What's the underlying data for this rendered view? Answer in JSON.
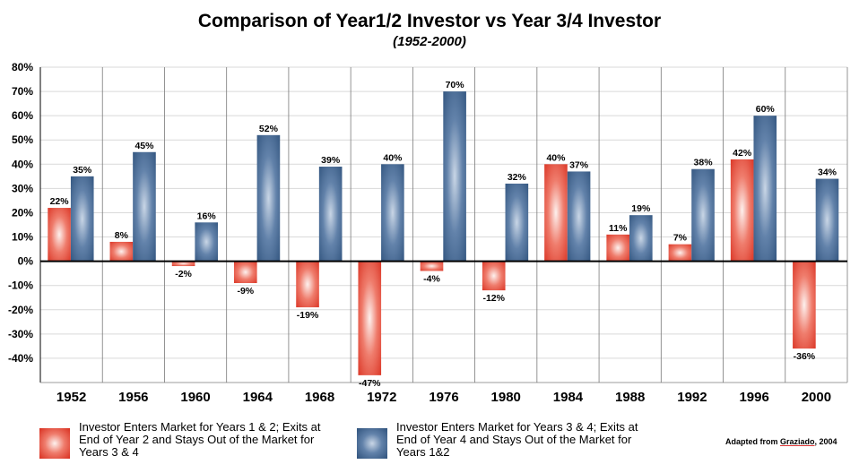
{
  "chart_data": {
    "type": "bar",
    "title": "Comparison of Year1/2 Investor vs Year 3/4 Investor",
    "subtitle": "(1952-2000)",
    "categories": [
      "1952",
      "1956",
      "1960",
      "1964",
      "1968",
      "1972",
      "1976",
      "1980",
      "1984",
      "1988",
      "1992",
      "1996",
      "2000"
    ],
    "series": [
      {
        "name": "Investor Enters Market for Years 1 & 2; Exits at End of Year 2 and Stays Out of the Market for Years 3 & 4",
        "values": [
          22,
          8,
          -2,
          -9,
          -19,
          -47,
          -4,
          -12,
          40,
          11,
          7,
          42,
          -36
        ],
        "labels": [
          "22%",
          "8%",
          "-2%",
          "-9%",
          "-19%",
          "-47%",
          "-4%",
          "-12%",
          "40%",
          "11%",
          "7%",
          "42%",
          "-36%"
        ],
        "color": "#e03a2a"
      },
      {
        "name": "Investor Enters Market for Years 3 & 4; Exits at End of Year 4 and Stays Out of the Market for Years 1&2",
        "values": [
          35,
          45,
          16,
          52,
          39,
          40,
          70,
          32,
          37,
          19,
          38,
          60,
          34
        ],
        "labels": [
          "35%",
          "45%",
          "16%",
          "52%",
          "39%",
          "40%",
          "70%",
          "32%",
          "37%",
          "19%",
          "38%",
          "60%",
          "34%"
        ],
        "color": "#3a5f8c"
      }
    ],
    "y_ticks": [
      "80%",
      "70%",
      "60%",
      "50%",
      "40%",
      "30%",
      "20%",
      "10%",
      "0%",
      "-10%",
      "-20%",
      "-30%",
      "-40%"
    ],
    "ylim": [
      -50,
      80
    ],
    "grid": true,
    "legend": "bottom"
  },
  "legend": {
    "left": {
      "line1": "Investor Enters Market for Years 1 & 2; Exits at",
      "line2": "End of Year 2 and Stays Out of the Market for",
      "line3": "Years 3 & 4"
    },
    "right": {
      "line1": "Investor Enters Market for Years 3 & 4; Exits at",
      "line2": "End of Year 4 and Stays Out of the Market for",
      "line3": "Years 1&2"
    }
  },
  "source": {
    "prefix": "Adapted from ",
    "author": "Graziado",
    "suffix": ", 2004"
  }
}
